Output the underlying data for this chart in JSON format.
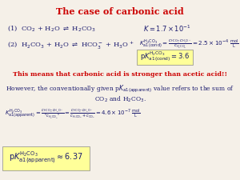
{
  "title": "The case of carbonic acid",
  "title_color": "#CC0000",
  "bg_color": "#F5F0E8",
  "text_color": "#1a1a6e",
  "highlight_color": "#FFFF99",
  "fig_width": 3.0,
  "fig_height": 2.25,
  "dpi": 100
}
